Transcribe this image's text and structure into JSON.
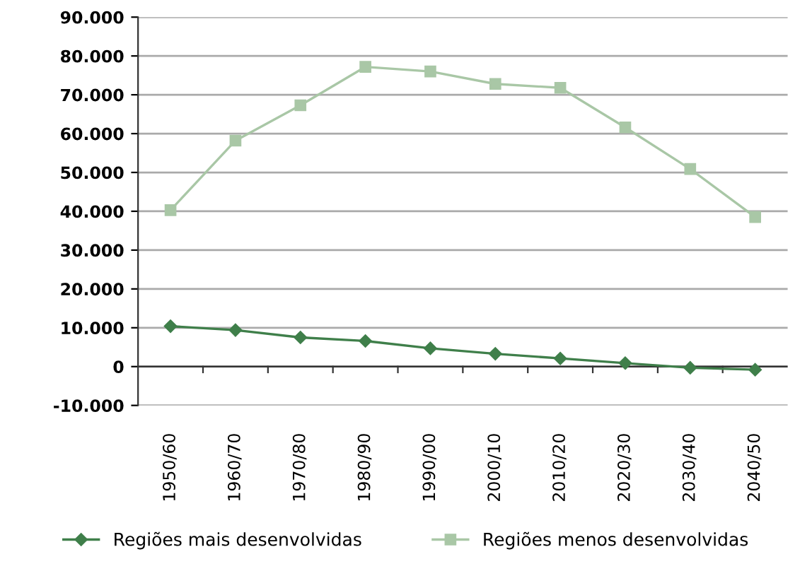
{
  "chart_data": {
    "type": "line",
    "categories": [
      "1950/60",
      "1960/70",
      "1970/80",
      "1980/90",
      "1990/00",
      "2000/10",
      "2010/20",
      "2020/30",
      "2030/40",
      "2040/50"
    ],
    "series": [
      {
        "name": "Regiões mais desenvolvidas",
        "color": "#3f7f4a",
        "marker": "diamond",
        "values": [
          10400,
          9400,
          7500,
          6600,
          4700,
          3300,
          2100,
          900,
          -300,
          -800
        ]
      },
      {
        "name": "Regiões menos desenvolvidas",
        "color": "#a9c7a6",
        "marker": "square",
        "values": [
          40300,
          58200,
          67300,
          77200,
          76000,
          72800,
          71800,
          61600,
          50900,
          38500
        ]
      }
    ],
    "ylim": [
      -10000,
      90000
    ],
    "yticks": [
      {
        "value": -10000,
        "label": "-10.000"
      },
      0,
      {
        "value": 10000,
        "label": "10.000"
      },
      {
        "value": 20000,
        "label": "20.000"
      },
      {
        "value": 30000,
        "label": "30.000"
      },
      {
        "value": 40000,
        "label": "40.000"
      },
      {
        "value": 50000,
        "label": "50.000"
      },
      {
        "value": 60000,
        "label": "60.000"
      },
      {
        "value": 70000,
        "label": "70.000"
      },
      {
        "value": 80000,
        "label": "80.000"
      },
      {
        "value": 90000,
        "label": "90.000"
      }
    ],
    "grid": "y",
    "legend": "bottom",
    "line_style": "solid"
  }
}
